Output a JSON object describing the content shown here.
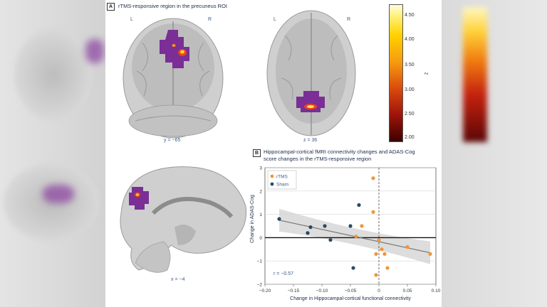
{
  "panel_a": {
    "tag": "A",
    "title": "rTMS-responsive region in the precuneus ROI",
    "left_label": "L",
    "right_label": "R",
    "coronal_label": "y = −65",
    "axial_label": "z = 36",
    "sagittal_label": "x = −4"
  },
  "colorbar": {
    "label": "z",
    "ticks": [
      "4.50",
      "4.00",
      "3.50",
      "3.00",
      "2.50",
      "2.00"
    ],
    "colors": [
      "#fffbe0",
      "#ffd200",
      "#f59a10",
      "#d8480c",
      "#a0150a",
      "#3c0000"
    ]
  },
  "panel_b": {
    "tag": "B",
    "title_line1": "Hippocampal-cortical fMRI connectivity changes and ADAS-Cog",
    "title_line2": "score changes in the rTMS-responsive region"
  },
  "chart_data": {
    "type": "scatter",
    "xlabel": "Change in Hippocampal-cortical functional connectivity",
    "ylabel": "Change in ADAS-Cog",
    "xlim": [
      -0.2,
      0.1
    ],
    "ylim": [
      -2,
      3
    ],
    "xticks": [
      "−0.20",
      "−0.15",
      "−0.10",
      "−0.05",
      "0",
      "0.05",
      "0.10"
    ],
    "yticks": [
      "3",
      "2",
      "1",
      "0",
      "−1",
      "−2"
    ],
    "annotation": "r = −0.57",
    "legend_position": "top-left",
    "series": [
      {
        "name": "rTMS",
        "color": "#f0963a",
        "points": [
          [
            -0.01,
            2.55
          ],
          [
            -0.01,
            1.1
          ],
          [
            -0.03,
            0.5
          ],
          [
            -0.04,
            0.05
          ],
          [
            0.0,
            -0.1
          ],
          [
            0.005,
            -0.5
          ],
          [
            -0.005,
            -0.7
          ],
          [
            0.01,
            -0.7
          ],
          [
            0.05,
            -0.4
          ],
          [
            0.015,
            -1.3
          ],
          [
            -0.005,
            -1.6
          ],
          [
            0.09,
            -0.7
          ]
        ]
      },
      {
        "name": "Sham",
        "color": "#2c4a5e",
        "points": [
          [
            -0.175,
            0.8
          ],
          [
            -0.12,
            0.45
          ],
          [
            -0.125,
            0.2
          ],
          [
            -0.095,
            0.5
          ],
          [
            -0.085,
            -0.1
          ],
          [
            -0.035,
            1.4
          ],
          [
            -0.05,
            0.5
          ],
          [
            -0.045,
            -1.3
          ]
        ]
      }
    ],
    "fit": {
      "x": [
        -0.175,
        0.09
      ],
      "y": [
        0.75,
        -0.65
      ],
      "color": "#777777",
      "band_color": "#cfcfcf"
    }
  }
}
